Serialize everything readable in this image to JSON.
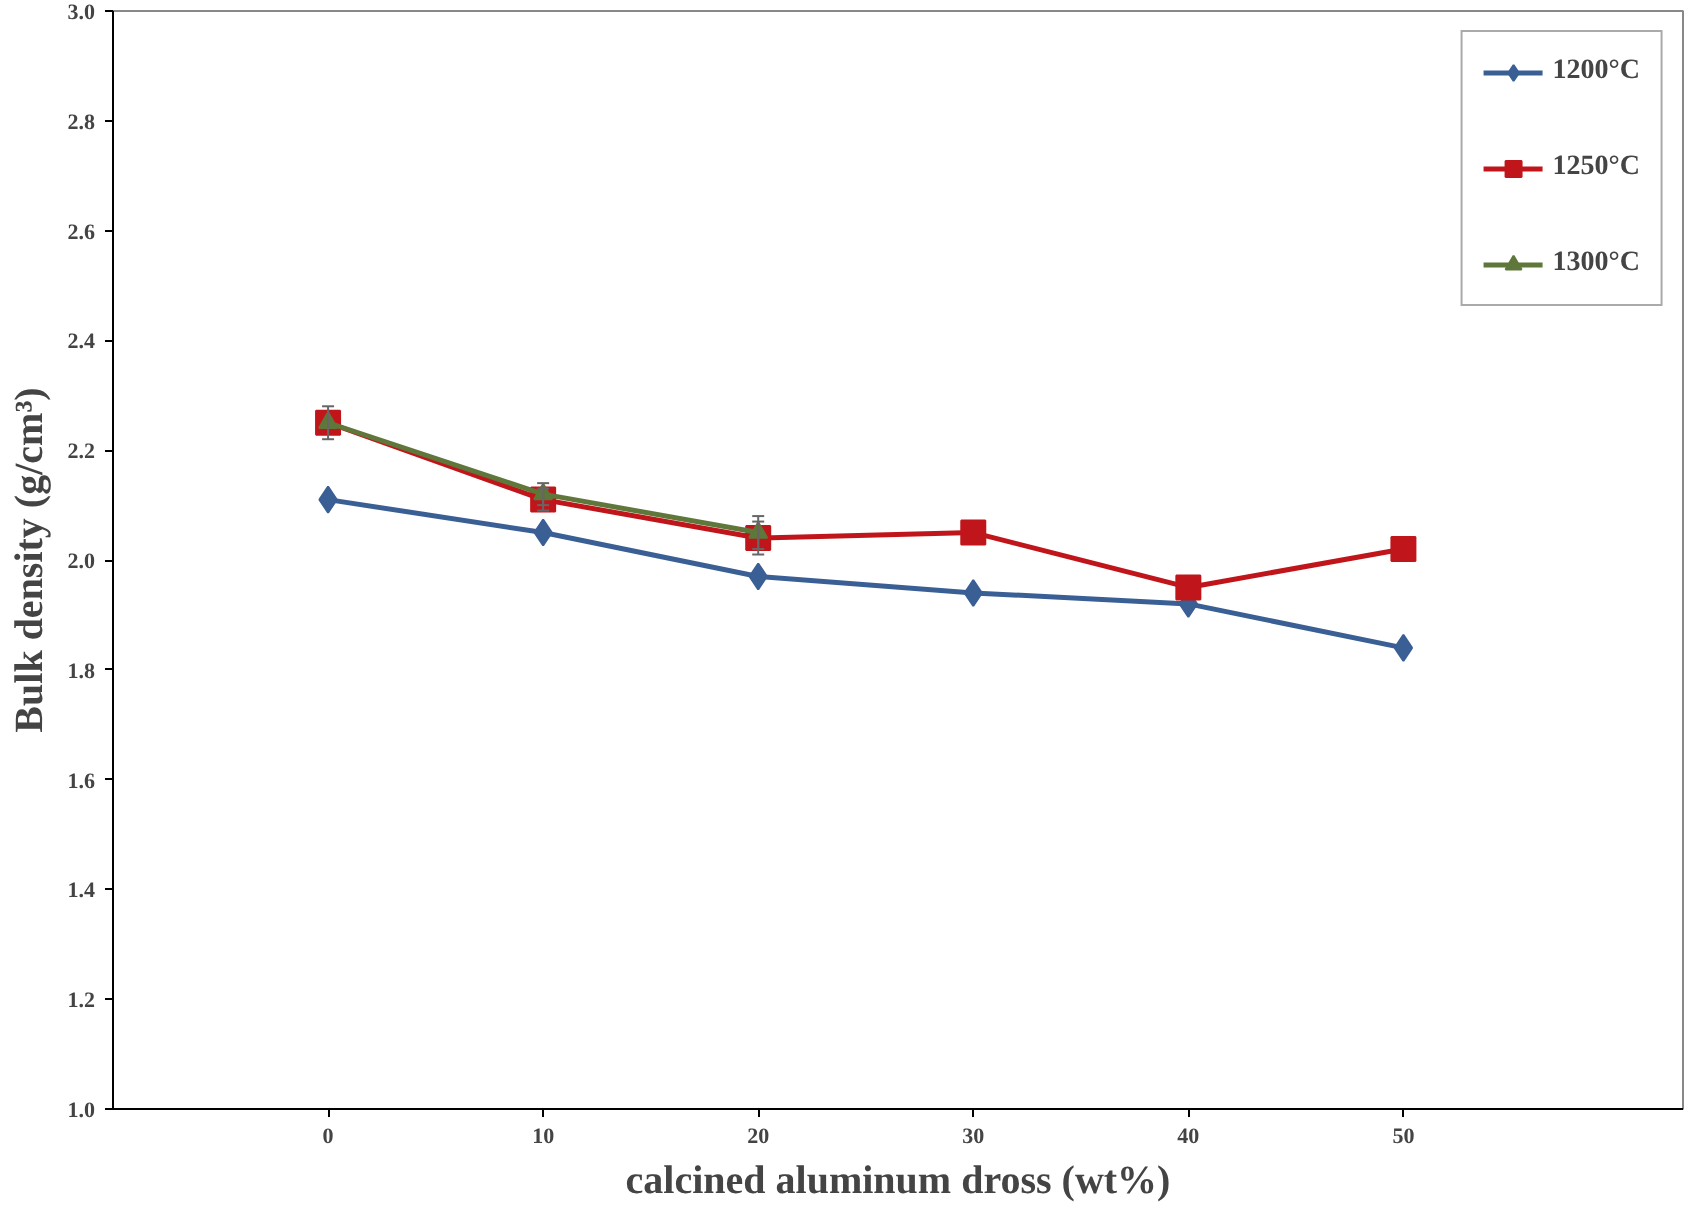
{
  "chart_data": {
    "type": "line",
    "xlabel": "calcined aluminum dross (wt%)",
    "ylabel": "Bulk density (g/cm³)",
    "categories": [
      "0",
      "10",
      "20",
      "30",
      "40",
      "50"
    ],
    "series": [
      {
        "name": "1200°C",
        "color": "#3a5f95",
        "marker": "diamond",
        "values": [
          2.11,
          2.05,
          1.97,
          1.94,
          1.92,
          1.84
        ]
      },
      {
        "name": "1250°C",
        "color": "#c0161b",
        "marker": "square",
        "values": [
          2.25,
          2.11,
          2.04,
          2.05,
          1.95,
          2.02
        ],
        "errors": [
          null,
          0.02,
          0.03,
          null,
          null,
          null
        ]
      },
      {
        "name": "1300°C",
        "color": "#5f773a",
        "marker": "triangle",
        "values": [
          2.25,
          2.12,
          2.05,
          null,
          null,
          null
        ],
        "errors": [
          0.03,
          0.02,
          0.03,
          null,
          null,
          null
        ]
      }
    ],
    "ylim": [
      1.0,
      3.0
    ],
    "yticks": [
      {
        "value": 1.0,
        "label": "1.0"
      },
      1.2,
      1.4,
      1.6,
      1.8,
      {
        "value": 2.0,
        "label": "2.0"
      },
      2.2,
      2.4,
      2.6,
      2.8,
      {
        "value": 3.0,
        "label": "3.0"
      }
    ],
    "grid": false,
    "legend": "top right",
    "line_style": "solid"
  }
}
